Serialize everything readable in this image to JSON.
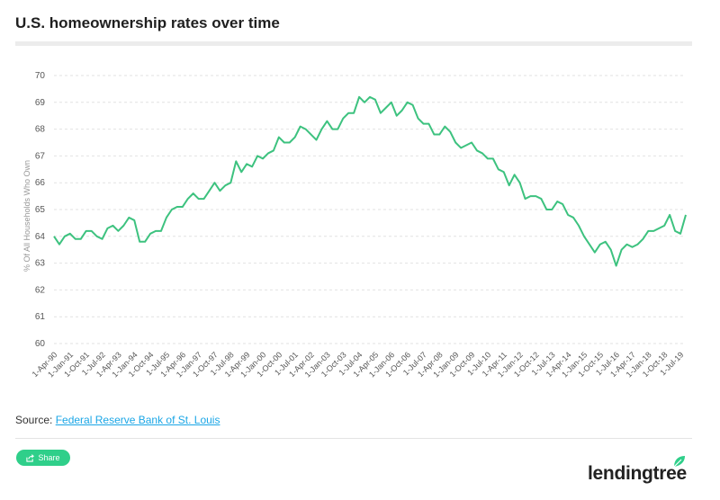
{
  "title": "U.S. homeownership rates over time",
  "source": {
    "prefix": "Source: ",
    "link_text": "Federal Reserve Bank of St. Louis"
  },
  "share": {
    "label": "Share",
    "icon": "share-icon"
  },
  "logo": {
    "text": "lendingtree",
    "icon": "leaf-icon"
  },
  "colors": {
    "line": "#3dc27f",
    "grid": "#e2e2e2",
    "share_bg": "#2fcf8a",
    "link": "#1aa6e6"
  },
  "chart_data": {
    "type": "line",
    "title": "U.S. homeownership rates over time",
    "ylabel": "% Of All Households Who Own",
    "xlabel": "",
    "ylim": [
      60,
      70
    ],
    "yticks": [
      60,
      61,
      62,
      63,
      64,
      65,
      66,
      67,
      68,
      69,
      70
    ],
    "grid": "horizontal-dashed",
    "x_tick_labels": [
      "1-Apr-90",
      "1-Jan-91",
      "1-Oct-91",
      "1-Jul-92",
      "1-Apr-93",
      "1-Jan-94",
      "1-Oct-94",
      "1-Jul-95",
      "1-Apr-96",
      "1-Jan-97",
      "1-Oct-97",
      "1-Jul-98",
      "1-Apr-99",
      "1-Jan-00",
      "1-Oct-00",
      "1-Jul-01",
      "1-Apr-02",
      "1-Jan-03",
      "1-Oct-03",
      "1-Jul-04",
      "1-Apr-05",
      "1-Jan-06",
      "1-Oct-06",
      "1-Jul-07",
      "1-Apr-08",
      "1-Jan-09",
      "1-Oct-09",
      "1-Jul-10",
      "1-Apr-11",
      "1-Jan-12",
      "1-Oct-12",
      "1-Jul-13",
      "1-Apr-14",
      "1-Jan-15",
      "1-Oct-15",
      "1-Jul-16",
      "1-Apr-17",
      "1-Jan-18",
      "1-Oct-18",
      "1-Jul-19"
    ],
    "series": [
      {
        "values": [
          64.0,
          63.7,
          64.0,
          64.1,
          63.9,
          63.9,
          64.2,
          64.2,
          64.0,
          63.9,
          64.3,
          64.4,
          64.2,
          64.4,
          64.7,
          64.6,
          63.8,
          63.8,
          64.1,
          64.2,
          64.2,
          64.7,
          65.0,
          65.1,
          65.1,
          65.4,
          65.6,
          65.4,
          65.4,
          65.7,
          66.0,
          65.7,
          65.9,
          66.0,
          66.8,
          66.4,
          66.7,
          66.6,
          67.0,
          66.9,
          67.1,
          67.2,
          67.7,
          67.5,
          67.5,
          67.7,
          68.1,
          68.0,
          67.8,
          67.6,
          68.0,
          68.3,
          68.0,
          68.0,
          68.4,
          68.6,
          68.6,
          69.2,
          69.0,
          69.2,
          69.1,
          68.6,
          68.8,
          69.0,
          68.5,
          68.7,
          69.0,
          68.9,
          68.4,
          68.2,
          68.2,
          67.8,
          67.8,
          68.1,
          67.9,
          67.5,
          67.3,
          67.4,
          67.5,
          67.2,
          67.1,
          66.9,
          66.9,
          66.5,
          66.4,
          65.9,
          66.3,
          66.0,
          65.4,
          65.5,
          65.5,
          65.4,
          65.0,
          65.0,
          65.3,
          65.2,
          64.8,
          64.7,
          64.4,
          64.0,
          63.7,
          63.4,
          63.7,
          63.8,
          63.5,
          62.9,
          63.5,
          63.7,
          63.6,
          63.7,
          63.9,
          64.2,
          64.2,
          64.3,
          64.4,
          64.8,
          64.2,
          64.1,
          64.8
        ]
      }
    ]
  }
}
